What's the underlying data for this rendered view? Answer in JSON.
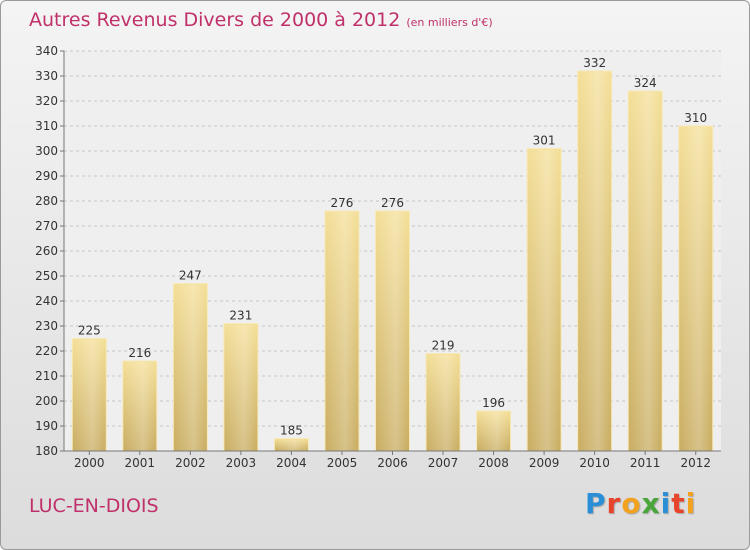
{
  "header": {
    "title": "Autres Revenus Divers de 2000 à 2012",
    "unit": "(en milliers d'€)"
  },
  "footer": {
    "place": "LUC-EN-DIOIS",
    "brand_letters": [
      "P",
      "r",
      "o",
      "x",
      "i",
      "t",
      "i"
    ],
    "brand_colors": [
      "#2b8fd8",
      "#e8432b",
      "#f2a21f",
      "#4aa63b",
      "#2b8fd8",
      "#e8432b",
      "#f2a21f"
    ]
  },
  "colors": {
    "accent": "#c0306a",
    "bar": "#e6cc84",
    "bar_light": "#f6e4a6",
    "bar_dark": "#c8ab5e"
  },
  "chart_data": {
    "type": "bar",
    "categories": [
      "2000",
      "2001",
      "2002",
      "2003",
      "2004",
      "2005",
      "2006",
      "2007",
      "2008",
      "2009",
      "2010",
      "2011",
      "2012"
    ],
    "values": [
      225,
      216,
      247,
      231,
      185,
      276,
      276,
      219,
      196,
      301,
      332,
      324,
      310
    ],
    "title": "Autres Revenus Divers de 2000 à 2012",
    "subtitle": "(en milliers d'€)",
    "xlabel": "",
    "ylabel": "",
    "ylim": [
      180,
      340
    ],
    "yticks": [
      180,
      190,
      200,
      210,
      220,
      230,
      240,
      250,
      260,
      270,
      280,
      290,
      300,
      310,
      320,
      330,
      340
    ],
    "grid": true
  }
}
